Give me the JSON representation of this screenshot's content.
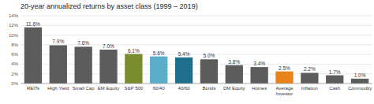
{
  "chart_data": {
    "type": "bar",
    "title": "20-year annualized returns by asset class (1999 – 2019)",
    "categories": [
      "REITs",
      "High Yield",
      "Small Cap",
      "EM Equity",
      "S&P 500",
      "60/40",
      "40/60",
      "Bonds",
      "DM Equity",
      "Homes",
      "Average\nInvestor",
      "Inflation",
      "Cash",
      "Commodity"
    ],
    "values": [
      11.6,
      7.9,
      7.6,
      7.0,
      6.1,
      5.6,
      5.4,
      5.0,
      3.8,
      3.4,
      2.5,
      2.2,
      1.7,
      1.0
    ],
    "value_labels": [
      "11.6%",
      "7.9%",
      "7.6%",
      "7.0%",
      "6.1%",
      "5.6%",
      "5.4%",
      "5.0%",
      "3.8%",
      "3.4%",
      "2.5%",
      "2.2%",
      "1.7%",
      "1.0%"
    ],
    "colors": [
      "#5c5c5c",
      "#5c5c5c",
      "#5c5c5c",
      "#5c5c5c",
      "#7a8c2e",
      "#5baec9",
      "#1f6e8c",
      "#5c5c5c",
      "#5c5c5c",
      "#5c5c5c",
      "#e8821a",
      "#5c5c5c",
      "#5c5c5c",
      "#5c5c5c"
    ],
    "ylim": [
      0,
      14
    ],
    "yticks": [
      {
        "value": 0,
        "label": "0%"
      },
      {
        "value": 2,
        "label": "2%"
      },
      {
        "value": 4,
        "label": "4%"
      },
      {
        "value": 6,
        "label": "6%"
      },
      {
        "value": 8,
        "label": "8%"
      },
      {
        "value": 10,
        "label": "10%"
      },
      {
        "value": 12,
        "label": "12%"
      },
      {
        "value": 14,
        "label": "14%"
      }
    ],
    "grid": true,
    "data_labels": true
  }
}
